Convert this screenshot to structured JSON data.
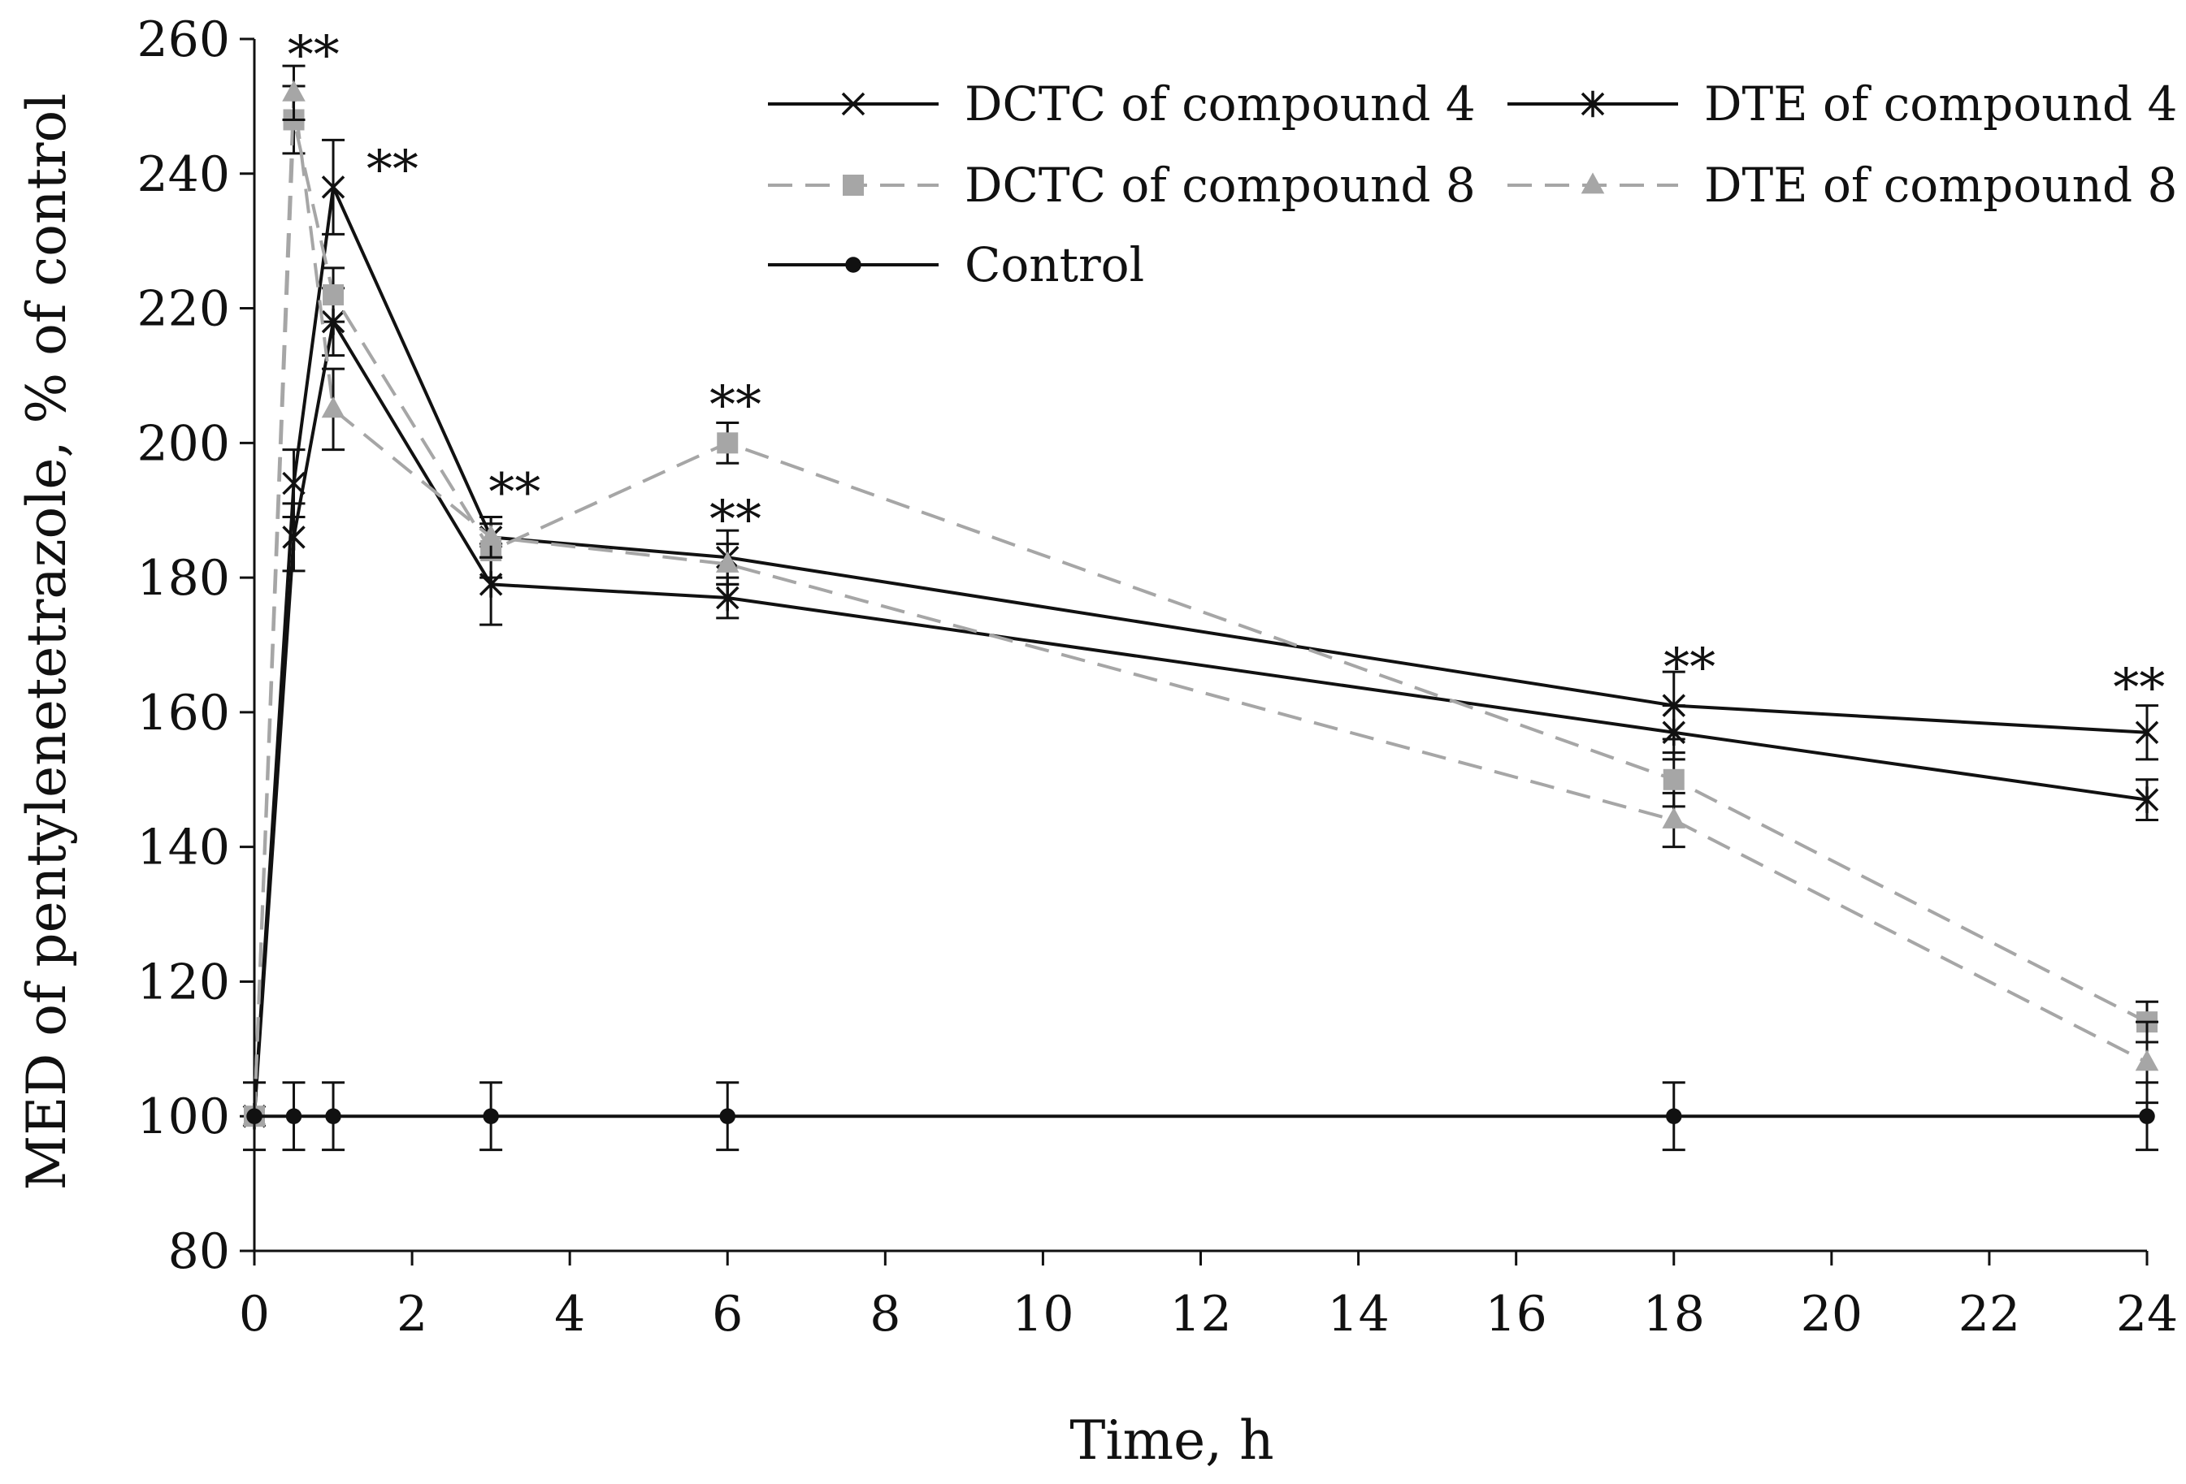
{
  "chart_data": {
    "type": "line",
    "xlabel": "Time, h",
    "ylabel": "MED of pentylenetetrazole, % of control",
    "xlim": [
      0,
      24
    ],
    "ylim": [
      80,
      260
    ],
    "x_ticks": [
      "0",
      "2",
      "4",
      "6",
      "8",
      "10",
      "12",
      "14",
      "16",
      "18",
      "20",
      "22",
      "24"
    ],
    "y_ticks": [
      "80",
      "100",
      "120",
      "140",
      "160",
      "180",
      "200",
      "220",
      "240",
      "260"
    ],
    "grid": false,
    "legend_position": "top-right",
    "series": [
      {
        "name": "DCTC of compound 4",
        "color": "#111111",
        "dashed": false,
        "marker": "x",
        "x": [
          0,
          0.5,
          1,
          3,
          6,
          18,
          24
        ],
        "y": [
          100,
          194,
          238,
          186,
          183,
          161,
          157
        ],
        "err": [
          0,
          5,
          7,
          3,
          4,
          5,
          4
        ]
      },
      {
        "name": "DTE of compound 4",
        "color": "#111111",
        "dashed": false,
        "marker": "asterisk",
        "x": [
          0,
          0.5,
          1,
          3,
          6,
          18,
          24
        ],
        "y": [
          100,
          186,
          218,
          179,
          177,
          157,
          147
        ],
        "err": [
          0,
          5,
          5,
          6,
          3,
          4,
          3
        ]
      },
      {
        "name": "DCTC of compound 8",
        "color": "#a6a6a6",
        "dashed": true,
        "marker": "square",
        "x": [
          0,
          0.5,
          1,
          3,
          6,
          18,
          24
        ],
        "y": [
          100,
          248,
          222,
          184,
          200,
          150,
          114
        ],
        "err": [
          0,
          5,
          4,
          4,
          3,
          4,
          3
        ]
      },
      {
        "name": "DTE of compound 8",
        "color": "#a6a6a6",
        "dashed": true,
        "marker": "triangle",
        "x": [
          0,
          0.5,
          1,
          3,
          6,
          18,
          24
        ],
        "y": [
          100,
          252,
          205,
          186,
          182,
          144,
          108
        ],
        "err": [
          0,
          4,
          6,
          3,
          3,
          4,
          6
        ]
      },
      {
        "name": "Control",
        "color": "#111111",
        "dashed": false,
        "marker": "circle",
        "x": [
          0,
          0.5,
          1,
          3,
          6,
          18,
          24
        ],
        "y": [
          100,
          100,
          100,
          100,
          100,
          100,
          100
        ],
        "err": [
          5,
          5,
          5,
          5,
          5,
          5,
          5
        ]
      }
    ],
    "annotations": [
      {
        "text": "**",
        "x": 0.75,
        "y": 255
      },
      {
        "text": "**",
        "x": 1.75,
        "y": 238
      },
      {
        "text": "**",
        "x": 3.3,
        "y": 190
      },
      {
        "text": "**",
        "x": 6.1,
        "y": 203
      },
      {
        "text": "**",
        "x": 6.1,
        "y": 186
      },
      {
        "text": "**",
        "x": 18.2,
        "y": 164
      },
      {
        "text": "**",
        "x": 23.9,
        "y": 161
      }
    ]
  }
}
